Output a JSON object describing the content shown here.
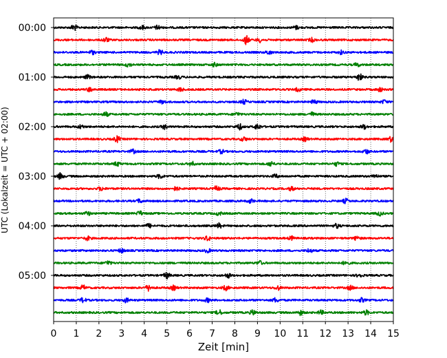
{
  "chart_data": {
    "type": "line",
    "title": "",
    "xlabel": "Zeit  [min]",
    "ylabel": "UTC (Lokalzeit = UTC + 02:00)",
    "xlim": [
      0,
      15
    ],
    "x_ticks": [
      "0",
      "1",
      "2",
      "3",
      "4",
      "5",
      "6",
      "7",
      "8",
      "9",
      "10",
      "11",
      "12",
      "13",
      "14",
      "15"
    ],
    "y_ticks": [
      "00:00",
      "01:00",
      "02:00",
      "03:00",
      "04:00",
      "05:00"
    ],
    "grid": "vertical dotted lines at each minute",
    "trace_colors": [
      "#000000",
      "#ff0000",
      "#0000ff",
      "#008000"
    ],
    "traces": [
      {
        "label": "00:00",
        "color": "#000000",
        "events": [
          [
            0.9,
            2.5
          ],
          [
            3.9,
            1.6
          ],
          [
            4.6,
            1.8
          ],
          [
            10.7,
            1.4
          ]
        ]
      },
      {
        "label": "00:15",
        "color": "#ff0000",
        "events": [
          [
            2.3,
            2.0
          ],
          [
            8.5,
            3.5
          ],
          [
            9.1,
            1.8
          ],
          [
            11.4,
            1.6
          ]
        ]
      },
      {
        "label": "00:30",
        "color": "#0000ff",
        "events": [
          [
            1.7,
            1.6
          ],
          [
            4.7,
            1.9
          ],
          [
            9.5,
            1.7
          ],
          [
            12.7,
            1.5
          ]
        ]
      },
      {
        "label": "00:45",
        "color": "#008000",
        "events": [
          [
            3.3,
            1.7
          ],
          [
            7.1,
            1.5
          ],
          [
            13.4,
            1.5
          ]
        ]
      },
      {
        "label": "01:00",
        "color": "#000000",
        "events": [
          [
            1.5,
            1.6
          ],
          [
            5.5,
            1.4
          ],
          [
            13.5,
            3.0
          ]
        ]
      },
      {
        "label": "01:15",
        "color": "#ff0000",
        "events": [
          [
            1.6,
            1.8
          ],
          [
            5.6,
            1.6
          ],
          [
            10.8,
            1.5
          ],
          [
            14.4,
            1.6
          ]
        ]
      },
      {
        "label": "01:30",
        "color": "#0000ff",
        "events": [
          [
            4.8,
            1.5
          ],
          [
            8.4,
            1.8
          ],
          [
            11.5,
            1.6
          ],
          [
            14.6,
            1.5
          ]
        ]
      },
      {
        "label": "01:45",
        "color": "#008000",
        "events": [
          [
            2.3,
            1.8
          ],
          [
            8.1,
            1.5
          ],
          [
            11.4,
            1.6
          ]
        ]
      },
      {
        "label": "02:00",
        "color": "#000000",
        "events": [
          [
            1.2,
            1.5
          ],
          [
            4.9,
            1.8
          ],
          [
            8.2,
            2.5
          ],
          [
            9.0,
            2.5
          ],
          [
            13.7,
            1.7
          ]
        ]
      },
      {
        "label": "02:15",
        "color": "#ff0000",
        "events": [
          [
            2.8,
            2.5
          ],
          [
            8.4,
            1.7
          ],
          [
            11.1,
            1.6
          ],
          [
            14.9,
            2.2
          ]
        ]
      },
      {
        "label": "02:30",
        "color": "#0000ff",
        "events": [
          [
            3.5,
            1.6
          ],
          [
            7.4,
            1.5
          ],
          [
            13.8,
            1.9
          ]
        ]
      },
      {
        "label": "02:45",
        "color": "#008000",
        "events": [
          [
            2.8,
            1.8
          ],
          [
            6.1,
            1.7
          ],
          [
            9.6,
            2.0
          ],
          [
            12.5,
            1.6
          ]
        ]
      },
      {
        "label": "03:00",
        "color": "#000000",
        "events": [
          [
            0.3,
            2.5
          ],
          [
            4.7,
            1.8
          ],
          [
            9.8,
            1.6
          ],
          [
            14.2,
            1.6
          ]
        ]
      },
      {
        "label": "03:15",
        "color": "#ff0000",
        "events": [
          [
            2.1,
            1.6
          ],
          [
            5.4,
            1.6
          ],
          [
            7.2,
            2.2
          ],
          [
            10.5,
            1.5
          ]
        ]
      },
      {
        "label": "03:30",
        "color": "#0000ff",
        "events": [
          [
            3.8,
            1.5
          ],
          [
            8.7,
            1.7
          ],
          [
            12.9,
            1.8
          ]
        ]
      },
      {
        "label": "03:45",
        "color": "#008000",
        "events": [
          [
            1.5,
            1.6
          ],
          [
            3.8,
            1.9
          ],
          [
            7.3,
            1.5
          ],
          [
            14.4,
            1.8
          ]
        ]
      },
      {
        "label": "04:00",
        "color": "#000000",
        "events": [
          [
            4.2,
            1.6
          ],
          [
            7.3,
            2.0
          ],
          [
            12.5,
            1.8
          ]
        ]
      },
      {
        "label": "04:15",
        "color": "#ff0000",
        "events": [
          [
            1.5,
            1.6
          ],
          [
            6.8,
            2.0
          ],
          [
            10.5,
            1.5
          ],
          [
            13.4,
            1.8
          ]
        ]
      },
      {
        "label": "04:30",
        "color": "#0000ff",
        "events": [
          [
            3.0,
            1.7
          ],
          [
            6.8,
            1.5
          ],
          [
            11.3,
            1.6
          ]
        ]
      },
      {
        "label": "04:45",
        "color": "#008000",
        "events": [
          [
            2.4,
            1.8
          ],
          [
            9.1,
            1.6
          ],
          [
            12.9,
            1.9
          ]
        ]
      },
      {
        "label": "05:00",
        "color": "#000000",
        "events": [
          [
            5.0,
            2.6
          ],
          [
            7.7,
            1.8
          ],
          [
            13.5,
            1.6
          ]
        ]
      },
      {
        "label": "05:15",
        "color": "#ff0000",
        "events": [
          [
            1.3,
            2.0
          ],
          [
            4.2,
            2.5
          ],
          [
            5.3,
            1.8
          ],
          [
            7.6,
            2.0
          ],
          [
            9.9,
            1.8
          ],
          [
            13.1,
            1.7
          ]
        ]
      },
      {
        "label": "05:30",
        "color": "#0000ff",
        "events": [
          [
            1.3,
            2.0
          ],
          [
            3.2,
            1.7
          ],
          [
            6.8,
            1.6
          ],
          [
            9.8,
            1.8
          ],
          [
            13.6,
            1.6
          ]
        ]
      },
      {
        "label": "05:45",
        "color": "#008000",
        "events": [
          [
            7.3,
            2.2
          ],
          [
            8.8,
            2.0
          ],
          [
            10.9,
            2.0
          ],
          [
            11.8,
            1.7
          ],
          [
            13.8,
            1.9
          ]
        ]
      }
    ]
  }
}
